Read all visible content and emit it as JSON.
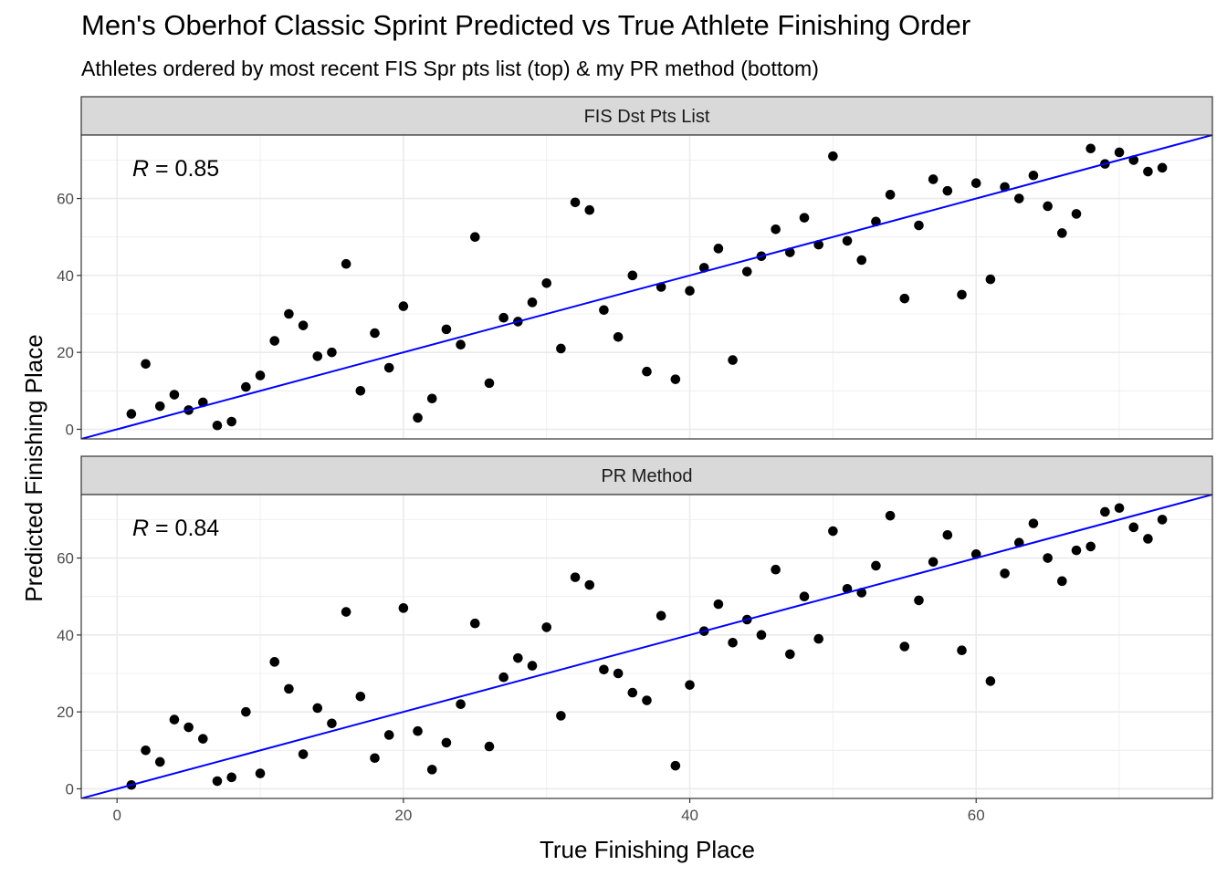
{
  "title": "Men's Oberhof Classic Sprint Predicted vs True Athlete Finishing Order",
  "subtitle": "Athletes ordered by most recent FIS Spr pts list (top) & my PR method (bottom)",
  "colors": {
    "background": "#ffffff",
    "strip": "#d9d9d9",
    "grid": "#ebebeb",
    "points": "#000000",
    "line": "#0000ff"
  },
  "chart_data": [
    {
      "type": "scatter",
      "panel": "FIS Dst Pts List",
      "r_prefix": "R",
      "r_value": " = 0.85",
      "xlabel": "True Finishing Place",
      "ylabel": "Predicted Finishing Place",
      "xlim": [
        -2.5,
        76.5
      ],
      "ylim": [
        -2.5,
        76.5
      ],
      "xticks": [
        0,
        20,
        40,
        60
      ],
      "yticks": [
        0,
        20,
        40,
        60
      ],
      "grid": true,
      "reference_line": {
        "slope": 1,
        "intercept": 0
      },
      "x": [
        1,
        2,
        3,
        4,
        5,
        6,
        7,
        8,
        9,
        10,
        11,
        12,
        13,
        14,
        15,
        16,
        17,
        18,
        19,
        20,
        21,
        22,
        23,
        24,
        25,
        26,
        27,
        28,
        29,
        30,
        31,
        32,
        33,
        34,
        35,
        36,
        37,
        38,
        39,
        40,
        41,
        42,
        43,
        44,
        45,
        46,
        47,
        48,
        49,
        50,
        51,
        52,
        53,
        54,
        55,
        56,
        57,
        58,
        59,
        60,
        61,
        62,
        63,
        64,
        65,
        66,
        67,
        68,
        69,
        70,
        71,
        72,
        73
      ],
      "y": [
        4,
        17,
        6,
        9,
        5,
        7,
        1,
        2,
        11,
        14,
        23,
        30,
        27,
        19,
        20,
        43,
        10,
        25,
        16,
        32,
        3,
        8,
        26,
        22,
        50,
        12,
        29,
        28,
        33,
        38,
        21,
        59,
        57,
        31,
        24,
        40,
        15,
        37,
        13,
        36,
        42,
        47,
        18,
        41,
        45,
        52,
        46,
        55,
        48,
        71,
        49,
        44,
        54,
        61,
        34,
        53,
        65,
        62,
        35,
        64,
        39,
        63,
        60,
        66,
        58,
        51,
        56,
        73,
        69,
        72,
        70,
        67,
        68
      ]
    },
    {
      "type": "scatter",
      "panel": "PR Method",
      "r_prefix": "R",
      "r_value": " = 0.84",
      "xlabel": "True Finishing Place",
      "ylabel": "Predicted Finishing Place",
      "xlim": [
        -2.5,
        76.5
      ],
      "ylim": [
        -2.5,
        76.5
      ],
      "xticks": [
        0,
        20,
        40,
        60
      ],
      "yticks": [
        0,
        20,
        40,
        60
      ],
      "grid": true,
      "reference_line": {
        "slope": 1,
        "intercept": 0
      },
      "x": [
        1,
        2,
        3,
        4,
        5,
        6,
        7,
        8,
        9,
        10,
        11,
        12,
        13,
        14,
        15,
        16,
        17,
        18,
        19,
        20,
        21,
        22,
        23,
        24,
        25,
        26,
        27,
        28,
        29,
        30,
        31,
        32,
        33,
        34,
        35,
        36,
        37,
        38,
        39,
        40,
        41,
        42,
        43,
        44,
        45,
        46,
        47,
        48,
        49,
        50,
        51,
        52,
        53,
        54,
        55,
        56,
        57,
        58,
        59,
        60,
        61,
        62,
        63,
        64,
        65,
        66,
        67,
        68,
        69,
        70,
        71,
        72,
        73
      ],
      "y": [
        1,
        10,
        7,
        18,
        16,
        13,
        2,
        3,
        20,
        4,
        33,
        26,
        9,
        21,
        17,
        46,
        24,
        8,
        14,
        47,
        15,
        5,
        12,
        22,
        43,
        11,
        29,
        34,
        32,
        42,
        19,
        55,
        53,
        31,
        30,
        25,
        23,
        45,
        6,
        27,
        41,
        48,
        38,
        44,
        40,
        57,
        35,
        50,
        39,
        67,
        52,
        51,
        58,
        71,
        37,
        49,
        59,
        66,
        36,
        61,
        28,
        56,
        64,
        69,
        60,
        54,
        62,
        63,
        72,
        73,
        68,
        65,
        70
      ]
    }
  ]
}
